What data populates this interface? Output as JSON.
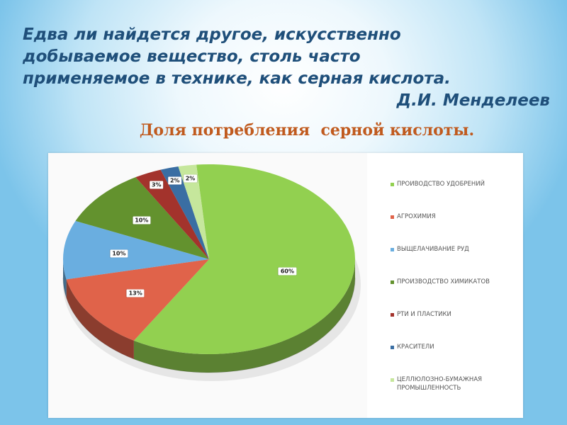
{
  "quote": {
    "lines": [
      "Едва ли найдется другое, искусственно",
      "добываемое вещество, столь часто",
      "применяемое в технике, как серная кислота."
    ],
    "author": "Д.И. Менделеев"
  },
  "subtitle": "Доля потребления  серной кислоты.",
  "chart_data": {
    "type": "pie",
    "title": "",
    "legend_position": "right",
    "slices": [
      {
        "name": "ПРОИВОДСТВО УДОБРЕНИЙ",
        "value": 60,
        "label": "60%",
        "color": "#92d050"
      },
      {
        "name": "АГРОХИМИЯ",
        "value": 13,
        "label": "13%",
        "color": "#e0634a"
      },
      {
        "name": "ВЫЩЕЛАЧИВАНИЕ РУД",
        "value": 10,
        "label": "10%",
        "color": "#6aaee0"
      },
      {
        "name": "ПРОИЗВОДСТВО ХИМИКАТОВ",
        "value": 10,
        "label": "10%",
        "color": "#63922e"
      },
      {
        "name": "РТИ И ПЛАСТИКИ",
        "value": 3,
        "label": "3%",
        "color": "#a3332c"
      },
      {
        "name": "КРАСИТЕЛИ",
        "value": 2,
        "label": "2%",
        "color": "#3a6ea3"
      },
      {
        "name": "ЦЕЛЛЮЛОЗНО-БУМАЖНАЯ ПРОМЫШЛЕННОСТЬ",
        "value": 2,
        "label": "2%",
        "color": "#c6e79c"
      }
    ]
  }
}
